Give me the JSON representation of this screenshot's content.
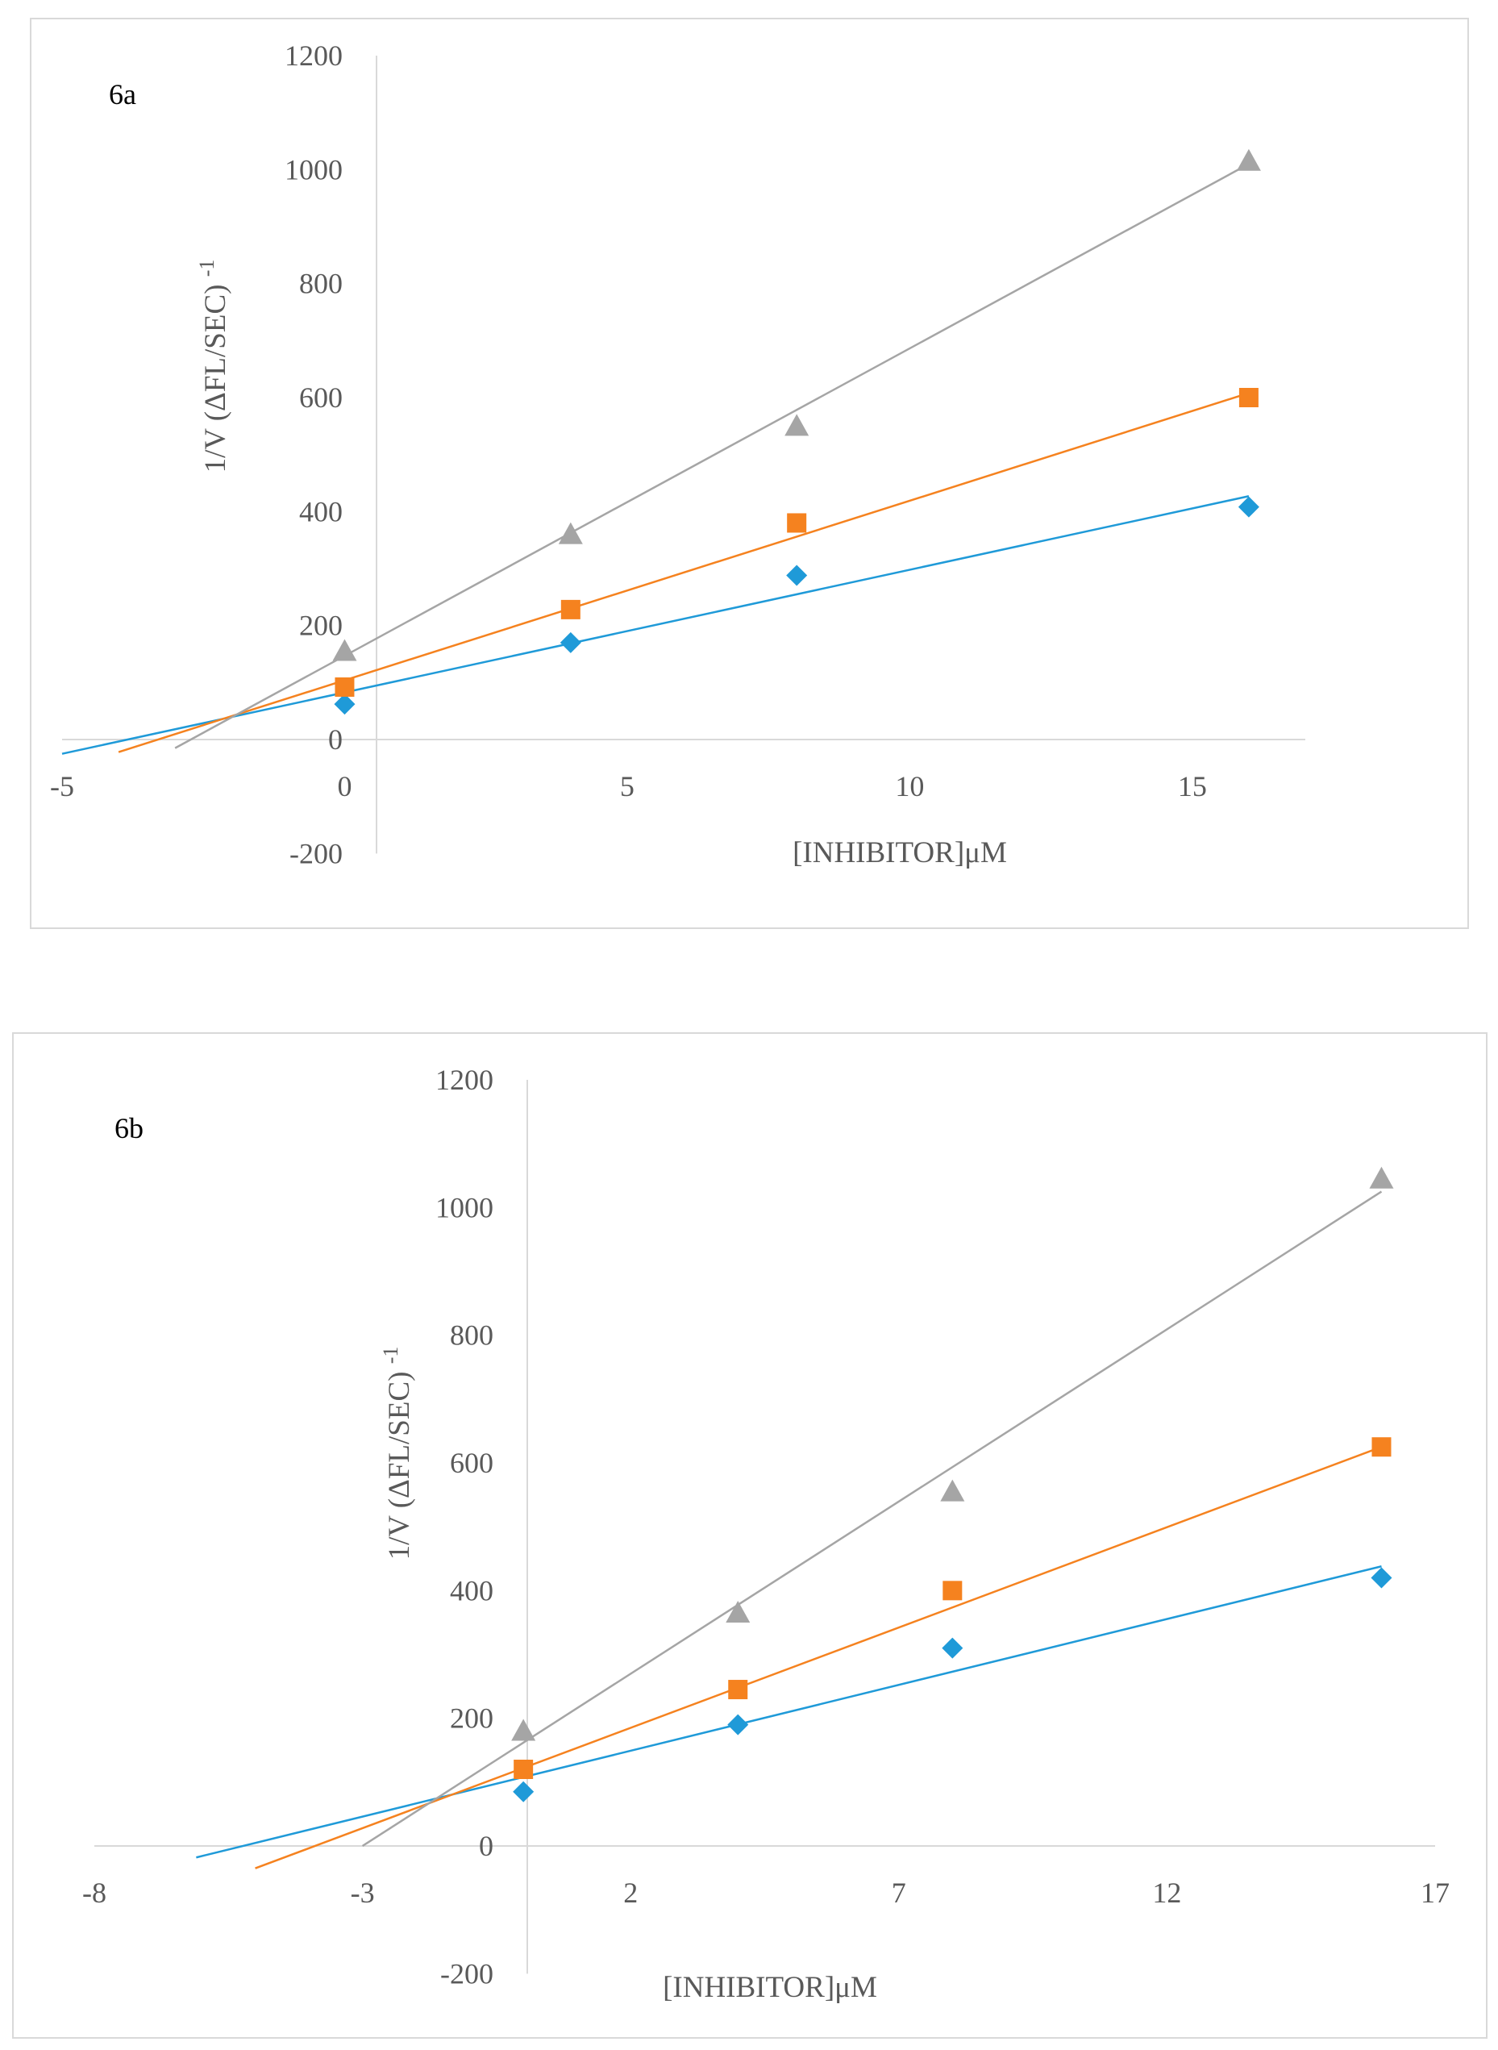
{
  "chart_data": [
    {
      "type": "scatter",
      "panel_label": "6a",
      "xlabel": "[INHIBITOR]μM",
      "ylabel": "1/V (ΔFL/SEC)",
      "ylabel_superscript": "-1",
      "xlim": [
        -5,
        17
      ],
      "ylim": [
        -200,
        1200
      ],
      "xticks": [
        -5,
        0,
        5,
        10,
        15
      ],
      "yticks": [
        -200,
        0,
        200,
        400,
        600,
        800,
        1000,
        1200
      ],
      "grid": false,
      "legend": "none",
      "series": [
        {
          "name": "series-1",
          "color": "#1f9ad8",
          "marker": "diamond",
          "x": [
            0,
            4,
            8,
            16
          ],
          "y": [
            62,
            170,
            288,
            408
          ],
          "trendline": {
            "x": [
              -5,
              16
            ],
            "y": [
              -25,
              427
            ]
          }
        },
        {
          "name": "series-2",
          "color": "#f5821f",
          "marker": "square",
          "x": [
            0,
            4,
            8,
            16
          ],
          "y": [
            92,
            228,
            380,
            600
          ],
          "trendline": {
            "x": [
              -4,
              16
            ],
            "y": [
              -22,
              608
            ]
          }
        },
        {
          "name": "series-3",
          "color": "#a5a5a5",
          "marker": "triangle",
          "x": [
            0,
            4,
            8,
            16
          ],
          "y": [
            155,
            360,
            550,
            1015
          ],
          "trendline": {
            "x": [
              -3,
              16
            ],
            "y": [
              -15,
              1010
            ]
          }
        }
      ]
    },
    {
      "type": "scatter",
      "panel_label": "6b",
      "xlabel": "[INHIBITOR]μM",
      "ylabel": "1/V (ΔFL/SEC)",
      "ylabel_superscript": "-1",
      "xlim": [
        -8,
        17
      ],
      "ylim": [
        -200,
        1200
      ],
      "xticks": [
        -8,
        -3,
        2,
        7,
        12,
        17
      ],
      "yticks": [
        -200,
        0,
        200,
        400,
        600,
        800,
        1000,
        1200
      ],
      "grid": false,
      "legend": "none",
      "series": [
        {
          "name": "series-1",
          "color": "#1f9ad8",
          "marker": "diamond",
          "x": [
            0,
            4,
            8,
            16
          ],
          "y": [
            85,
            190,
            310,
            420
          ],
          "trendline": {
            "x": [
              -6.1,
              16
            ],
            "y": [
              -18,
              438
            ]
          }
        },
        {
          "name": "series-2",
          "color": "#f5821f",
          "marker": "square",
          "x": [
            0,
            4,
            8,
            16
          ],
          "y": [
            120,
            245,
            400,
            625
          ],
          "trendline": {
            "x": [
              -5,
              16
            ],
            "y": [
              -35,
              625
            ]
          }
        },
        {
          "name": "series-3",
          "color": "#a5a5a5",
          "marker": "triangle",
          "x": [
            0,
            4,
            8,
            16
          ],
          "y": [
            180,
            365,
            555,
            1045
          ],
          "trendline": {
            "x": [
              -3,
              16
            ],
            "y": [
              0,
              1025
            ]
          }
        }
      ]
    }
  ]
}
